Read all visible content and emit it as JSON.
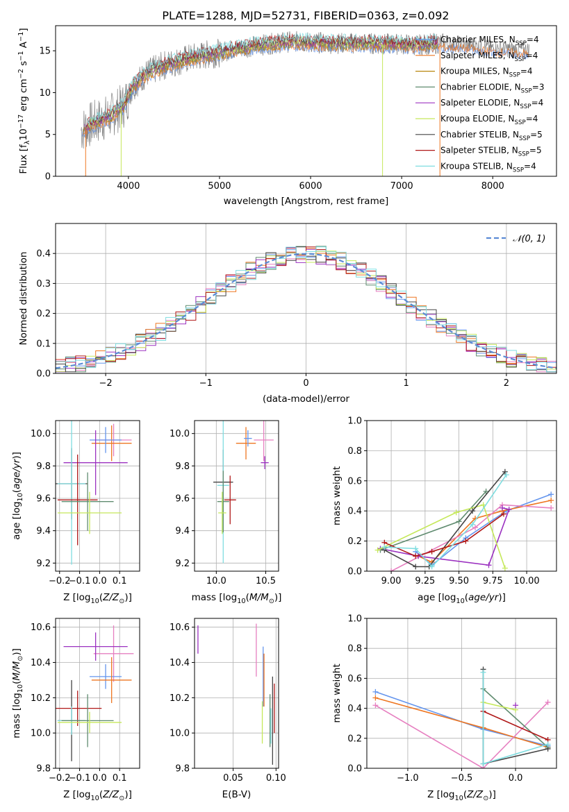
{
  "title": "PLATE=1288, MJD=52731, FIBERID=0363, z=0.092",
  "colors": {
    "Chabrier MILES": "#6495ed",
    "Salpeter MILES": "#ee7621",
    "Kroupa MILES": "#b8860b",
    "Chabrier ELODIE": "#5f8b6f",
    "Salpeter ELODIE": "#9b30c0",
    "Kroupa ELODIE": "#c5e85a",
    "Chabrier STELIB": "#444444",
    "Salpeter STELIB": "#b01818",
    "Kroupa STELIB": "#7fdde0",
    "pink": "#e67fc0",
    "data": "#808080"
  },
  "chart_data": [
    {
      "type": "line",
      "id": "spectrum",
      "title": "PLATE=1288, MJD=52731, FIBERID=0363, z=0.092",
      "xlabel": "wavelength [Angstrom, rest frame]",
      "ylabel": "Flux [fλ10⁻¹⁷ erg cm⁻² s⁻¹ A⁻¹]",
      "xlim": [
        3200,
        8700
      ],
      "ylim": [
        0,
        18
      ],
      "xticks": [
        4000,
        5000,
        6000,
        7000,
        8000
      ],
      "yticks": [
        0,
        5,
        10,
        15
      ],
      "continuum": {
        "x": [
          3480,
          3600,
          3800,
          3950,
          4050,
          4200,
          4400,
          4600,
          4800,
          5000,
          5200,
          5400,
          5600,
          5800,
          6000,
          6200,
          6400,
          6600,
          6800,
          7000,
          7200,
          7400,
          7600,
          7800,
          8000,
          8200,
          8400
        ],
        "y": [
          5.5,
          6.3,
          7.2,
          8.5,
          10.8,
          12.3,
          13.3,
          13.9,
          14.4,
          14.8,
          15.3,
          15.6,
          15.9,
          16.1,
          16.0,
          15.9,
          15.9,
          15.9,
          15.8,
          15.8,
          15.7,
          15.9,
          15.8,
          15.6,
          15.3,
          15.2,
          15.1
        ]
      },
      "series": [
        {
          "name": "Chabrier MILES, N_SSP=4"
        },
        {
          "name": "Salpeter MILES, N_SSP=4"
        },
        {
          "name": "Kroupa MILES, N_SSP=4"
        },
        {
          "name": "Chabrier ELODIE, N_SSP=3"
        },
        {
          "name": "Salpeter ELODIE, N_SSP=4"
        },
        {
          "name": "Kroupa ELODIE, N_SSP=4"
        },
        {
          "name": "Chabrier STELIB, N_SSP=5"
        },
        {
          "name": "Salpeter STELIB, N_SSP=5"
        },
        {
          "name": "Kroupa STELIB, N_SSP=4"
        }
      ]
    },
    {
      "type": "histogram",
      "id": "residuals",
      "xlabel": "(data-model)/error",
      "ylabel": "Normed distribution",
      "xlim": [
        -2.5,
        2.5
      ],
      "ylim": [
        0,
        0.5
      ],
      "xticks": [
        -2,
        -1,
        0,
        1,
        2
      ],
      "yticks": [
        0.0,
        0.1,
        0.2,
        0.3,
        0.4
      ],
      "legend": "𝒩(0, 1)",
      "bin_width": 0.1
    },
    {
      "type": "scatter",
      "id": "age_vs_Z",
      "xlabel": "Z [log10(Z/Z⊙)]",
      "ylabel": "age [log10(age/yr)]",
      "xlim": [
        -0.22,
        0.2
      ],
      "ylim": [
        9.15,
        10.08
      ],
      "xticks": [
        -0.2,
        -0.1,
        0.0,
        0.1
      ],
      "yticks": [
        9.2,
        9.4,
        9.6,
        9.8,
        10.0
      ],
      "points": [
        {
          "c": "pink",
          "x": 0.07,
          "y": 9.96,
          "xe": 0.09,
          "ye": 0.1
        },
        {
          "c": "Salpeter MILES",
          "x": 0.06,
          "y": 9.94,
          "xe": 0.1,
          "ye": 0.11
        },
        {
          "c": "Chabrier MILES",
          "x": 0.03,
          "y": 9.96,
          "xe": 0.08,
          "ye": 0.08
        },
        {
          "c": "Salpeter ELODIE",
          "x": -0.02,
          "y": 9.82,
          "xe": 0.16,
          "ye": 0.2
        },
        {
          "c": "Chabrier STELIB",
          "x": -0.14,
          "y": 9.69,
          "xe": 0.08,
          "ye": 0.22
        },
        {
          "c": "Kroupa STELIB",
          "x": -0.14,
          "y": 9.69,
          "xe": 0.07,
          "ye": 0.5
        },
        {
          "c": "Salpeter STELIB",
          "x": -0.11,
          "y": 9.59,
          "xe": 0.1,
          "ye": 0.28
        },
        {
          "c": "Chabrier ELODIE",
          "x": -0.06,
          "y": 9.58,
          "xe": 0.13,
          "ye": 0.18
        },
        {
          "c": "Kroupa ELODIE",
          "x": -0.05,
          "y": 9.51,
          "xe": 0.16,
          "ye": 0.13
        }
      ]
    },
    {
      "type": "scatter",
      "id": "age_vs_mass",
      "xlabel": "mass [log10(M/M⊙)]",
      "ylabel": "",
      "xlim": [
        9.78,
        10.63
      ],
      "ylim": [
        9.15,
        10.08
      ],
      "xticks": [
        10.0,
        10.5
      ],
      "yticks": [
        9.2,
        9.4,
        9.6,
        9.8,
        10.0
      ],
      "points": [
        {
          "c": "pink",
          "x": 10.48,
          "y": 9.96,
          "xe": 0.1,
          "ye": 0.13
        },
        {
          "c": "Salpeter MILES",
          "x": 10.3,
          "y": 9.94,
          "xe": 0.1,
          "ye": 0.1
        },
        {
          "c": "Chabrier MILES",
          "x": 10.32,
          "y": 9.97,
          "xe": 0.04,
          "ye": 0.05
        },
        {
          "c": "Salpeter ELODIE",
          "x": 10.49,
          "y": 9.82,
          "xe": 0.04,
          "ye": 0.04
        },
        {
          "c": "Chabrier STELIB",
          "x": 10.07,
          "y": 9.7,
          "xe": 0.1,
          "ye": 0.2
        },
        {
          "c": "Kroupa STELIB",
          "x": 10.07,
          "y": 9.68,
          "xe": 0.06,
          "ye": 0.48
        },
        {
          "c": "Salpeter STELIB",
          "x": 10.14,
          "y": 9.59,
          "xe": 0.06,
          "ye": 0.15
        },
        {
          "c": "Chabrier ELODIE",
          "x": 10.07,
          "y": 9.58,
          "xe": 0.06,
          "ye": 0.19
        },
        {
          "c": "Kroupa ELODIE",
          "x": 10.06,
          "y": 9.51,
          "xe": 0.04,
          "ye": 0.13
        }
      ]
    },
    {
      "type": "line",
      "id": "weight_vs_age",
      "xlabel": "age  [log10(age/yr)]",
      "ylabel": "mass weight",
      "xlim": [
        8.82,
        10.22
      ],
      "ylim": [
        0,
        1
      ],
      "xticks": [
        9.0,
        9.25,
        9.5,
        9.75,
        10.0
      ],
      "yticks": [
        0.0,
        0.2,
        0.4,
        0.6,
        0.8,
        1.0
      ],
      "series": [
        {
          "c": "Chabrier MILES",
          "x": [
            9.18,
            9.3,
            9.55,
            9.85,
            10.18
          ],
          "y": [
            0.13,
            0.04,
            0.22,
            0.4,
            0.51
          ]
        },
        {
          "c": "Salpeter MILES",
          "x": [
            9.2,
            9.3,
            9.62,
            9.82,
            10.18
          ],
          "y": [
            0.1,
            0.06,
            0.35,
            0.4,
            0.47
          ]
        },
        {
          "c": "pink",
          "x": [
            9.0,
            9.62,
            9.82,
            10.18
          ],
          "y": [
            0.0,
            0.29,
            0.44,
            0.42
          ]
        },
        {
          "c": "Salpeter ELODIE",
          "x": [
            8.92,
            9.2,
            9.72,
            9.87,
            9.82
          ],
          "y": [
            0.15,
            0.1,
            0.04,
            0.41,
            0.42
          ]
        },
        {
          "c": "Chabrier ELODIE",
          "x": [
            8.92,
            9.5,
            9.7
          ],
          "y": [
            0.14,
            0.33,
            0.53
          ]
        },
        {
          "c": "Kroupa ELODIE",
          "x": [
            8.9,
            9.48,
            9.68,
            9.84
          ],
          "y": [
            0.14,
            0.39,
            0.44,
            0.02
          ]
        },
        {
          "c": "Chabrier STELIB",
          "x": [
            8.95,
            9.18,
            9.28,
            9.6,
            9.84
          ],
          "y": [
            0.14,
            0.03,
            0.03,
            0.4,
            0.66
          ]
        },
        {
          "c": "Salpeter STELIB",
          "x": [
            8.95,
            9.18,
            9.3,
            9.55,
            9.83
          ],
          "y": [
            0.19,
            0.1,
            0.13,
            0.2,
            0.38
          ]
        },
        {
          "c": "Kroupa STELIB",
          "x": [
            8.95,
            9.18,
            9.3,
            9.6,
            9.85
          ],
          "y": [
            0.16,
            0.15,
            0.03,
            0.31,
            0.64
          ]
        }
      ]
    },
    {
      "type": "scatter",
      "id": "mass_vs_Z",
      "xlabel": "Z [log10(Z/Z⊙)]",
      "ylabel": "mass [log10(M/M⊙)]",
      "xlim": [
        -0.22,
        0.2
      ],
      "ylim": [
        9.8,
        10.65
      ],
      "xticks": [
        -0.2,
        -0.1,
        0.0,
        0.1
      ],
      "yticks": [
        9.8,
        10.0,
        10.2,
        10.4,
        10.6
      ],
      "points": [
        {
          "c": "pink",
          "x": 0.07,
          "y": 10.45,
          "xe": 0.1,
          "ye": 0.16
        },
        {
          "c": "Salpeter ELODIE",
          "x": -0.02,
          "y": 10.49,
          "xe": 0.16,
          "ye": 0.08
        },
        {
          "c": "Chabrier MILES",
          "x": 0.03,
          "y": 10.32,
          "xe": 0.08,
          "ye": 0.07
        },
        {
          "c": "Salpeter MILES",
          "x": 0.06,
          "y": 10.3,
          "xe": 0.1,
          "ye": 0.13
        },
        {
          "c": "Salpeter STELIB",
          "x": -0.11,
          "y": 10.14,
          "xe": 0.12,
          "ye": 0.1
        },
        {
          "c": "Chabrier STELIB",
          "x": -0.14,
          "y": 10.07,
          "xe": 0.07,
          "ye": 0.23
        },
        {
          "c": "Kroupa STELIB",
          "x": -0.14,
          "y": 10.07,
          "xe": 0.07,
          "ye": 0.08
        },
        {
          "c": "Chabrier ELODIE",
          "x": -0.06,
          "y": 10.07,
          "xe": 0.13,
          "ye": 0.15
        },
        {
          "c": "Kroupa ELODIE",
          "x": -0.05,
          "y": 10.06,
          "xe": 0.16,
          "ye": 0.06
        }
      ]
    },
    {
      "type": "scatter",
      "id": "mass_vs_EBV",
      "xlabel": "E(B-V)",
      "ylabel": "",
      "xlim": [
        0.005,
        0.103
      ],
      "ylim": [
        9.8,
        10.65
      ],
      "xticks": [
        0.05,
        0.1
      ],
      "yticks": [
        9.8,
        10.0,
        10.2,
        10.4,
        10.6
      ],
      "points": [
        {
          "c": "Salpeter ELODIE",
          "x": 0.009,
          "y": 10.53,
          "xe": 0,
          "ye": 0.08
        },
        {
          "c": "pink",
          "x": 0.077,
          "y": 10.47,
          "xe": 0,
          "ye": 0.15
        },
        {
          "c": "Chabrier MILES",
          "x": 0.085,
          "y": 10.32,
          "xe": 0,
          "ye": 0.17
        },
        {
          "c": "Salpeter MILES",
          "x": 0.086,
          "y": 10.3,
          "xe": 0,
          "ye": 0.15
        },
        {
          "c": "Kroupa ELODIE",
          "x": 0.084,
          "y": 10.06,
          "xe": 0,
          "ye": 0.12
        },
        {
          "c": "Salpeter STELIB",
          "x": 0.098,
          "y": 10.14,
          "xe": 0,
          "ye": 0.14
        },
        {
          "c": "Chabrier ELODIE",
          "x": 0.093,
          "y": 10.07,
          "xe": 0,
          "ye": 0.15
        },
        {
          "c": "Chabrier STELIB",
          "x": 0.096,
          "y": 10.07,
          "xe": 0,
          "ye": 0.25
        },
        {
          "c": "Kroupa STELIB",
          "x": 0.094,
          "y": 10.04,
          "xe": 0,
          "ye": 0.1
        }
      ]
    },
    {
      "type": "line",
      "id": "weight_vs_Z",
      "xlabel": "Z [log10(Z/Z⊙)]",
      "ylabel": "mass weight",
      "xlim": [
        -1.38,
        0.38
      ],
      "ylim": [
        0,
        1
      ],
      "xticks": [
        -1.0,
        -0.5,
        0.0
      ],
      "yticks": [
        0.0,
        0.2,
        0.4,
        0.6,
        0.8,
        1.0
      ],
      "series": [
        {
          "c": "Chabrier MILES",
          "x": [
            -1.3,
            -0.3,
            0.3
          ],
          "y": [
            0.51,
            0.26,
            0.15
          ]
        },
        {
          "c": "Salpeter MILES",
          "x": [
            -1.3,
            -0.3,
            0.3
          ],
          "y": [
            0.47,
            0.27,
            0.14
          ]
        },
        {
          "c": "pink",
          "x": [
            -1.3,
            -0.3,
            0.3
          ],
          "y": [
            0.42,
            0.0,
            0.44
          ]
        },
        {
          "c": "Chabrier ELODIE",
          "x": [
            -0.3,
            0.3
          ],
          "y": [
            0.53,
            0.14
          ]
        },
        {
          "c": "Chabrier STELIB",
          "x": [
            -0.3,
            -0.3,
            0.3
          ],
          "y": [
            0.66,
            0.03,
            0.13
          ]
        },
        {
          "c": "Salpeter STELIB",
          "x": [
            -0.3,
            0.3
          ],
          "y": [
            0.38,
            0.19
          ]
        },
        {
          "c": "Kroupa ELODIE",
          "x": [
            -0.3,
            0.0
          ],
          "y": [
            0.44,
            0.39
          ]
        },
        {
          "c": "Kroupa STELIB",
          "x": [
            -0.3,
            -0.3,
            0.3
          ],
          "y": [
            0.64,
            0.03,
            0.16
          ]
        },
        {
          "c": "Salpeter ELODIE",
          "x": [
            0.0
          ],
          "y": [
            0.42
          ]
        }
      ]
    }
  ],
  "labels": {
    "spec_title": "PLATE=1288, MJD=52731, FIBERID=0363, z=0.092",
    "spec_xlabel": "wavelength [Angstrom, rest frame]",
    "hist_xlabel": "(data-model)/error",
    "hist_ylabel": "Normed distribution",
    "mass_weight": "mass weight",
    "ebv": "E(B-V)"
  }
}
